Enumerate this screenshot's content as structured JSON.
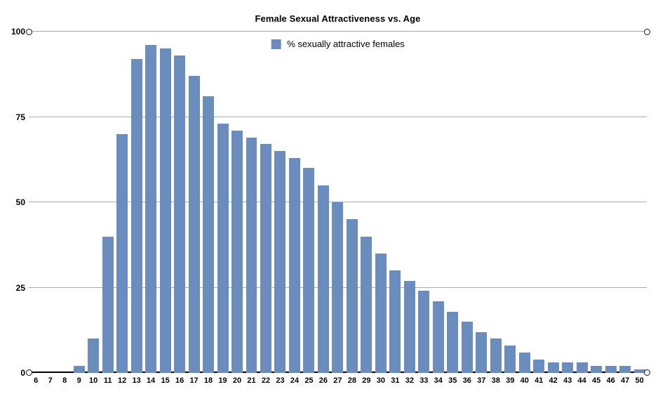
{
  "chart_data": {
    "type": "bar",
    "title": "Female Sexual Attractiveness vs. Age",
    "legend": [
      {
        "label": "% sexually attractive females",
        "swatch_color": "#6A8DBE"
      }
    ],
    "legend_position": "top-center-inside-plot",
    "categories": [
      "6",
      "7",
      "8",
      "9",
      "10",
      "11",
      "12",
      "13",
      "14",
      "15",
      "16",
      "17",
      "18",
      "19",
      "20",
      "21",
      "22",
      "23",
      "24",
      "25",
      "26",
      "27",
      "28",
      "29",
      "30",
      "31",
      "32",
      "33",
      "34",
      "35",
      "36",
      "37",
      "38",
      "39",
      "40",
      "41",
      "42",
      "43",
      "44",
      "45",
      "46",
      "47",
      "50"
    ],
    "values": [
      0,
      0,
      0,
      2,
      10,
      40,
      70,
      92,
      96,
      95,
      93,
      87,
      81,
      73,
      71,
      69,
      67,
      65,
      63,
      60,
      55,
      50,
      45,
      40,
      35,
      30,
      27,
      24,
      21,
      18,
      15,
      12,
      10,
      8,
      6,
      4,
      3,
      3,
      3,
      2,
      2,
      2,
      1
    ],
    "xlabel": "",
    "ylabel": "",
    "ylim": [
      0,
      100
    ],
    "yticks": [
      100,
      75,
      50,
      25,
      0
    ],
    "grid": true,
    "bar_color": "#6A8DBE",
    "gridline_color": "#ABABAB",
    "axis_color": "#000000",
    "axis_endpoint_markers": "open circles at both ends of top gridline and of baseline"
  }
}
